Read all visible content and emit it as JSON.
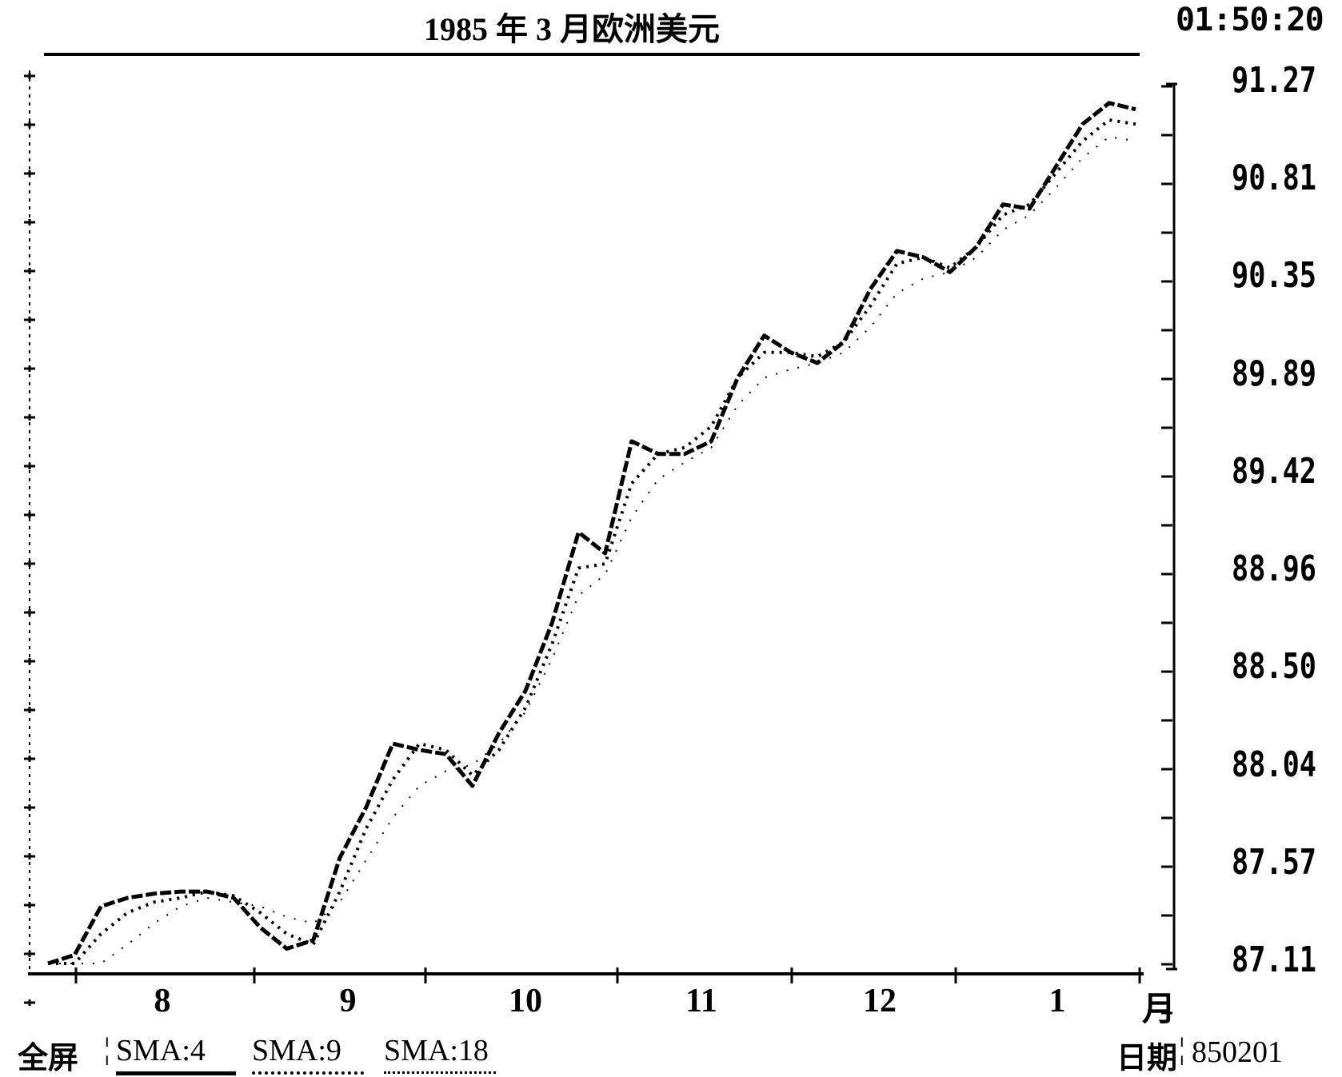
{
  "chart_data": {
    "type": "line",
    "title": "1985 年 3 月欧洲美元",
    "time": "01:50:20",
    "ylim": [
      87.11,
      91.27
    ],
    "y_ticks": [
      "91.27",
      "90.81",
      "90.35",
      "89.89",
      "89.42",
      "88.96",
      "88.50",
      "88.04",
      "87.57",
      "87.11"
    ],
    "x_ticks": [
      "8",
      "9",
      "10",
      "11",
      "12",
      "1"
    ],
    "x_unit": "月",
    "series": [
      {
        "name": "SMA:4",
        "style": "solid",
        "values": [
          87.11,
          87.15,
          87.38,
          87.42,
          87.44,
          87.45,
          87.45,
          87.42,
          87.28,
          87.18,
          87.22,
          87.61,
          87.85,
          88.15,
          88.12,
          88.1,
          87.95,
          88.2,
          88.4,
          88.72,
          89.15,
          89.05,
          89.58,
          89.52,
          89.52,
          89.58,
          89.88,
          90.08,
          90.0,
          89.95,
          90.05,
          90.3,
          90.48,
          90.45,
          90.38,
          90.5,
          90.7,
          90.68,
          90.88,
          91.08,
          91.18,
          91.15
        ]
      },
      {
        "name": "SMA:9",
        "style": "dotted",
        "values": [
          87.11,
          87.11,
          87.25,
          87.35,
          87.4,
          87.42,
          87.45,
          87.43,
          87.35,
          87.25,
          87.2,
          87.45,
          87.75,
          87.98,
          88.15,
          88.12,
          88.0,
          88.12,
          88.32,
          88.62,
          88.98,
          89.0,
          89.38,
          89.52,
          89.55,
          89.65,
          89.88,
          90.0,
          90.0,
          89.98,
          90.05,
          90.22,
          90.42,
          90.45,
          90.4,
          90.5,
          90.65,
          90.7,
          90.85,
          91.0,
          91.1,
          91.08
        ]
      },
      {
        "name": "SMA:18",
        "style": "sparse-dotted",
        "values": [
          87.11,
          87.11,
          87.11,
          87.2,
          87.3,
          87.38,
          87.42,
          87.4,
          87.38,
          87.33,
          87.3,
          87.4,
          87.6,
          87.8,
          87.95,
          88.02,
          88.05,
          88.15,
          88.3,
          88.55,
          88.85,
          88.95,
          89.22,
          89.4,
          89.48,
          89.55,
          89.75,
          89.88,
          89.92,
          89.95,
          90.0,
          90.12,
          90.28,
          90.35,
          90.38,
          90.45,
          90.58,
          90.65,
          90.78,
          90.92,
          91.02,
          91.0
        ]
      }
    ],
    "footer": {
      "mode_label": "全屏",
      "date_label": "日期",
      "date_value": "850201"
    }
  }
}
